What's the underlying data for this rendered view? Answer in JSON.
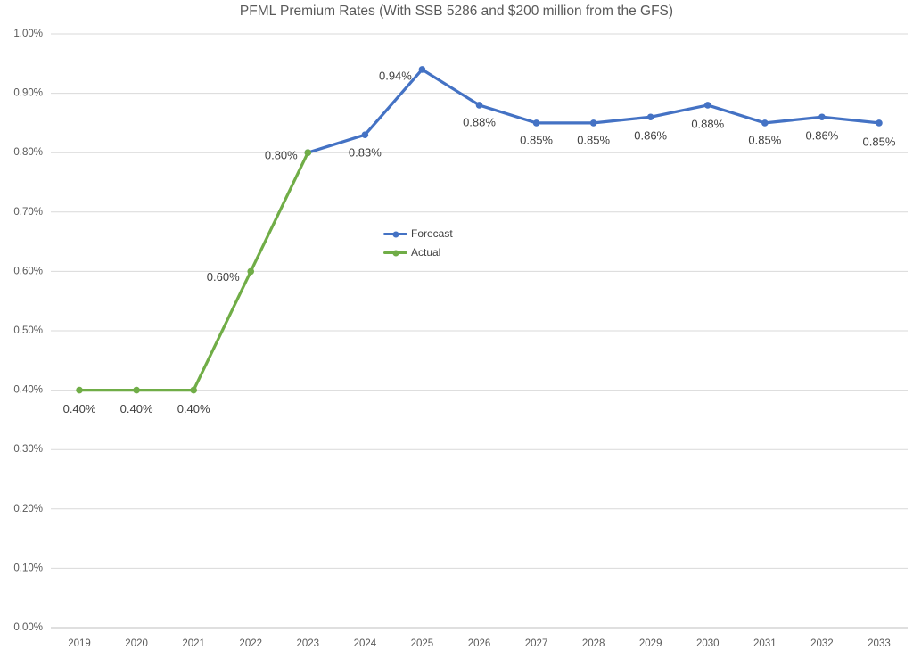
{
  "colors": {
    "background": "#FFFFFF",
    "grid": "#D9D9D9",
    "axis_line": "#BFBFBF",
    "axis_text": "#595959",
    "title_text": "#595959",
    "data_label_text": "#404040",
    "forecast": "#4472C4",
    "actual": "#70AD47"
  },
  "chart_data": {
    "type": "line",
    "title": "PFML Premium Rates (With SSB 5286 and $200 million from the GFS)",
    "xlabel": "",
    "ylabel": "",
    "categories": [
      "2019",
      "2020",
      "2021",
      "2022",
      "2023",
      "2024",
      "2025",
      "2026",
      "2027",
      "2028",
      "2029",
      "2030",
      "2031",
      "2032",
      "2033"
    ],
    "ylim": [
      0.0,
      1.0
    ],
    "y_tick_step": 0.1,
    "grid": "horizontal",
    "legend_position": "center",
    "y_ticks": [
      {
        "value": 0.0,
        "label": "0.00%"
      },
      {
        "value": 0.1,
        "label": "0.10%"
      },
      {
        "value": 0.2,
        "label": "0.20%"
      },
      {
        "value": 0.3,
        "label": "0.30%"
      },
      {
        "value": 0.4,
        "label": "0.40%"
      },
      {
        "value": 0.5,
        "label": "0.50%"
      },
      {
        "value": 0.6,
        "label": "0.60%"
      },
      {
        "value": 0.7,
        "label": "0.70%"
      },
      {
        "value": 0.8,
        "label": "0.80%"
      },
      {
        "value": 0.9,
        "label": "0.90%"
      },
      {
        "value": 1.0,
        "label": "1.00%"
      }
    ],
    "series": [
      {
        "name": "Forecast",
        "color": "#4472C4",
        "points": [
          {
            "category": "2023",
            "value": 0.8,
            "label": null,
            "label_dx": 0,
            "label_dy": 0
          },
          {
            "category": "2024",
            "value": 0.83,
            "label": "0.83%",
            "label_dx": 0,
            "label_dy": 20
          },
          {
            "category": "2025",
            "value": 0.94,
            "label": "0.94%",
            "label_dx": -30,
            "label_dy": 7
          },
          {
            "category": "2026",
            "value": 0.88,
            "label": "0.88%",
            "label_dx": 0,
            "label_dy": 19
          },
          {
            "category": "2027",
            "value": 0.85,
            "label": "0.85%",
            "label_dx": 0,
            "label_dy": 19
          },
          {
            "category": "2028",
            "value": 0.85,
            "label": "0.85%",
            "label_dx": 0,
            "label_dy": 19
          },
          {
            "category": "2029",
            "value": 0.86,
            "label": "0.86%",
            "label_dx": 0,
            "label_dy": 21
          },
          {
            "category": "2030",
            "value": 0.88,
            "label": "0.88%",
            "label_dx": 0,
            "label_dy": 21
          },
          {
            "category": "2031",
            "value": 0.85,
            "label": "0.85%",
            "label_dx": 0,
            "label_dy": 19
          },
          {
            "category": "2032",
            "value": 0.86,
            "label": "0.86%",
            "label_dx": 0,
            "label_dy": 21
          },
          {
            "category": "2033",
            "value": 0.85,
            "label": "0.85%",
            "label_dx": 0,
            "label_dy": 21
          }
        ]
      },
      {
        "name": "Actual",
        "color": "#70AD47",
        "points": [
          {
            "category": "2019",
            "value": 0.4,
            "label": "0.40%",
            "label_dx": 0,
            "label_dy": 21
          },
          {
            "category": "2020",
            "value": 0.4,
            "label": "0.40%",
            "label_dx": 0,
            "label_dy": 21
          },
          {
            "category": "2021",
            "value": 0.4,
            "label": "0.40%",
            "label_dx": 0,
            "label_dy": 21
          },
          {
            "category": "2022",
            "value": 0.6,
            "label": "0.60%",
            "label_dx": -31,
            "label_dy": 6
          },
          {
            "category": "2023",
            "value": 0.8,
            "label": "0.80%",
            "label_dx": -30,
            "label_dy": 3
          }
        ]
      }
    ]
  }
}
